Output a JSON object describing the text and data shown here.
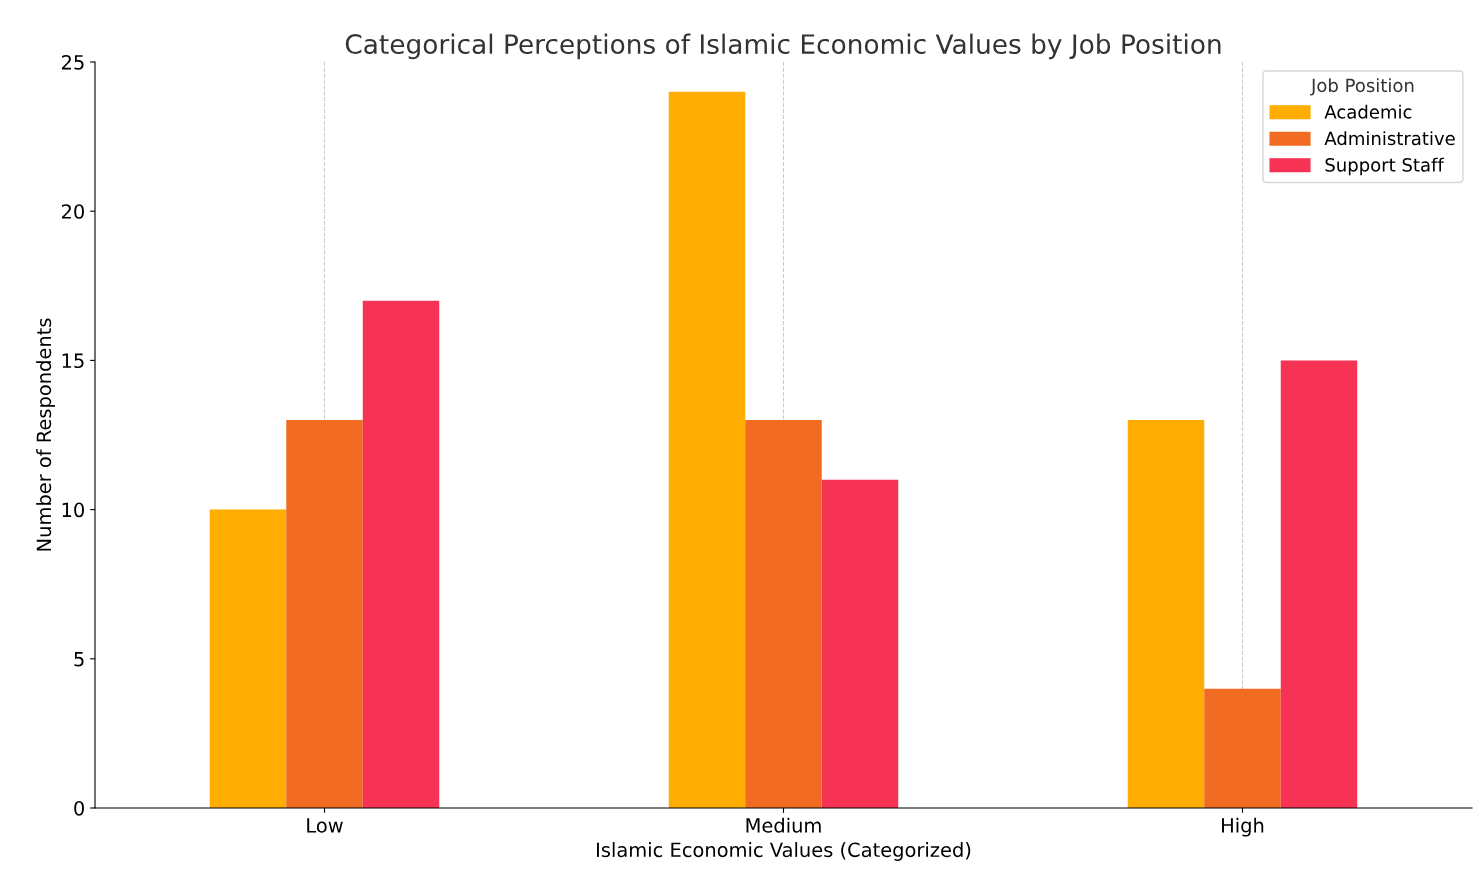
{
  "chart_data": {
    "type": "bar",
    "title": "Categorical Perceptions of Islamic Economic Values by Job Position",
    "xlabel": "Islamic Economic Values (Categorized)",
    "ylabel": "Number of Respondents",
    "legend_title": "Job Position",
    "categories": [
      "Low",
      "Medium",
      "High"
    ],
    "series": [
      {
        "name": "Academic",
        "color": "#ffad00",
        "values": [
          10,
          24,
          13
        ]
      },
      {
        "name": "Administrative",
        "color": "#f26b22",
        "values": [
          13,
          13,
          4
        ]
      },
      {
        "name": "Support Staff",
        "color": "#f63355",
        "values": [
          17,
          11,
          15
        ]
      }
    ],
    "ylim": [
      0,
      25
    ],
    "yticks": [
      0,
      5,
      10,
      15,
      20,
      25
    ],
    "grid": "x",
    "legend": "top right"
  }
}
